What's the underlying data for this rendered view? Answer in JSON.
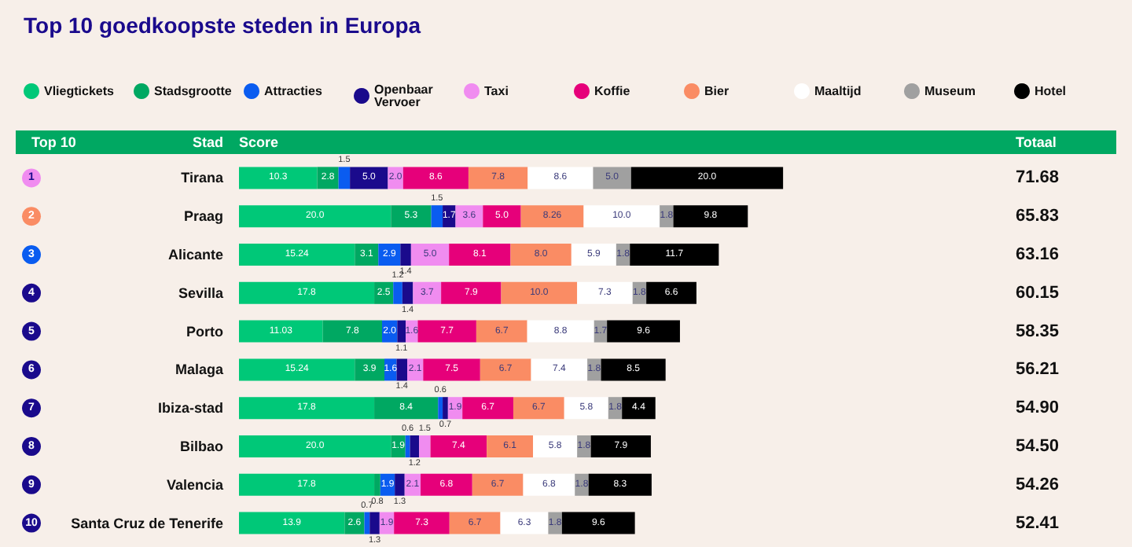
{
  "chart_data": {
    "type": "bar",
    "orientation": "horizontal",
    "stacked": true,
    "title": "Top 10 goedkoopste steden in Europa",
    "annotations": [
      "Top 10",
      "Stad",
      "Score",
      "Totaal",
      "1",
      "2",
      "3",
      "4",
      "5",
      "6",
      "7",
      "8",
      "9",
      "10",
      "71.68",
      "65.83",
      "63.16",
      "60.15",
      "58.35",
      "56.21",
      "54.90",
      "54.50",
      "54.26",
      "52.41"
    ],
    "xlim": [
      0,
      72
    ],
    "tick_labels": "y",
    "categories": [
      "Tirana",
      "Praag",
      "Alicante",
      "Sevilla",
      "Porto",
      "Malaga",
      "Ibiza-stad",
      "Bilbao",
      "Valencia",
      "Santa Cruz de Tenerife"
    ],
    "series": [
      {
        "name": "Vliegtickets",
        "color": "#00c878",
        "values": [
          10.3,
          20.0,
          15.24,
          17.8,
          11.03,
          15.24,
          17.8,
          20.0,
          17.8,
          13.9
        ],
        "value_labels": [
          "10.3",
          "20.0",
          "15.24",
          "17.8",
          "11.03",
          "15.24",
          "17.8",
          "20.0",
          "17.8",
          "13.9"
        ]
      },
      {
        "name": "Stadsgrootte",
        "color": "#00a862",
        "values": [
          2.8,
          5.3,
          3.1,
          2.5,
          7.8,
          3.9,
          8.4,
          1.9,
          0.8,
          2.6
        ],
        "value_labels": [
          "2.8",
          "5.3",
          "3.1",
          "2.5",
          "7.8",
          "3.9",
          "8.4",
          "1.9",
          "0.8",
          "2.6"
        ]
      },
      {
        "name": "Attracties",
        "color": "#0a5cf0",
        "values": [
          1.5,
          1.5,
          2.9,
          1.2,
          2.0,
          1.6,
          0.6,
          0.6,
          1.9,
          0.7
        ],
        "value_labels": [
          "1.5",
          "1.5",
          "2.9",
          "1.2",
          "2.0",
          "1.6",
          "0.6",
          "0.6",
          "1.9",
          "0.7"
        ]
      },
      {
        "name": "Openbaar Vervoer",
        "color": "#1a0a8c",
        "values": [
          5.0,
          1.7,
          1.4,
          1.4,
          1.1,
          1.4,
          0.7,
          1.2,
          1.3,
          1.3
        ],
        "value_labels": [
          "5.0",
          "1.7",
          "1.4",
          "1.4",
          "1.1",
          "1.4",
          "0.7",
          "1.2",
          "1.3",
          "1.3"
        ]
      },
      {
        "name": "Taxi",
        "color": "#f08cf0",
        "values": [
          2.0,
          3.6,
          5.0,
          3.7,
          1.6,
          2.1,
          1.9,
          1.5,
          2.1,
          1.9
        ],
        "value_labels": [
          "2.0",
          "3.6",
          "5.0",
          "3.7",
          "1.6",
          "2.1",
          "1.9",
          "1.5",
          "2.1",
          "1.9"
        ]
      },
      {
        "name": "Koffie",
        "color": "#e6007a",
        "values": [
          8.6,
          5.0,
          8.1,
          7.9,
          7.7,
          7.5,
          6.7,
          7.4,
          6.8,
          7.3
        ],
        "value_labels": [
          "8.6",
          "5.0",
          "8.1",
          "7.9",
          "7.7",
          "7.5",
          "6.7",
          "7.4",
          "6.8",
          "7.3"
        ]
      },
      {
        "name": "Bier",
        "color": "#fa8c64",
        "values": [
          7.8,
          8.26,
          8.0,
          10.0,
          6.7,
          6.7,
          6.7,
          6.1,
          6.7,
          6.7
        ],
        "value_labels": [
          "7.8",
          "8.26",
          "8.0",
          "10.0",
          "6.7",
          "6.7",
          "6.7",
          "6.1",
          "6.7",
          "6.7"
        ]
      },
      {
        "name": "Maaltijd",
        "color": "#ffffff",
        "values": [
          8.6,
          10.0,
          5.9,
          7.3,
          8.8,
          7.4,
          5.8,
          5.8,
          6.8,
          6.3
        ],
        "value_labels": [
          "8.6",
          "10.0",
          "5.9",
          "7.3",
          "8.8",
          "7.4",
          "5.8",
          "5.8",
          "6.8",
          "6.3"
        ]
      },
      {
        "name": "Museum",
        "color": "#a0a0a0",
        "values": [
          5.0,
          1.8,
          1.8,
          1.8,
          1.7,
          1.8,
          1.8,
          1.8,
          1.8,
          1.8
        ],
        "value_labels": [
          "5.0",
          "1.8",
          "1.8",
          "1.8",
          "1.7",
          "1.8",
          "1.8",
          "1.8",
          "1.8",
          "1.8"
        ]
      },
      {
        "name": "Hotel",
        "color": "#000000",
        "values": [
          20.0,
          9.8,
          11.7,
          6.6,
          9.6,
          8.5,
          4.4,
          7.9,
          8.3,
          9.6
        ],
        "value_labels": [
          "20.0",
          "9.8",
          "11.7",
          "6.6",
          "9.6",
          "8.5",
          "4.4",
          "7.9",
          "8.3",
          "9.6"
        ]
      }
    ],
    "legend": "top"
  }
}
